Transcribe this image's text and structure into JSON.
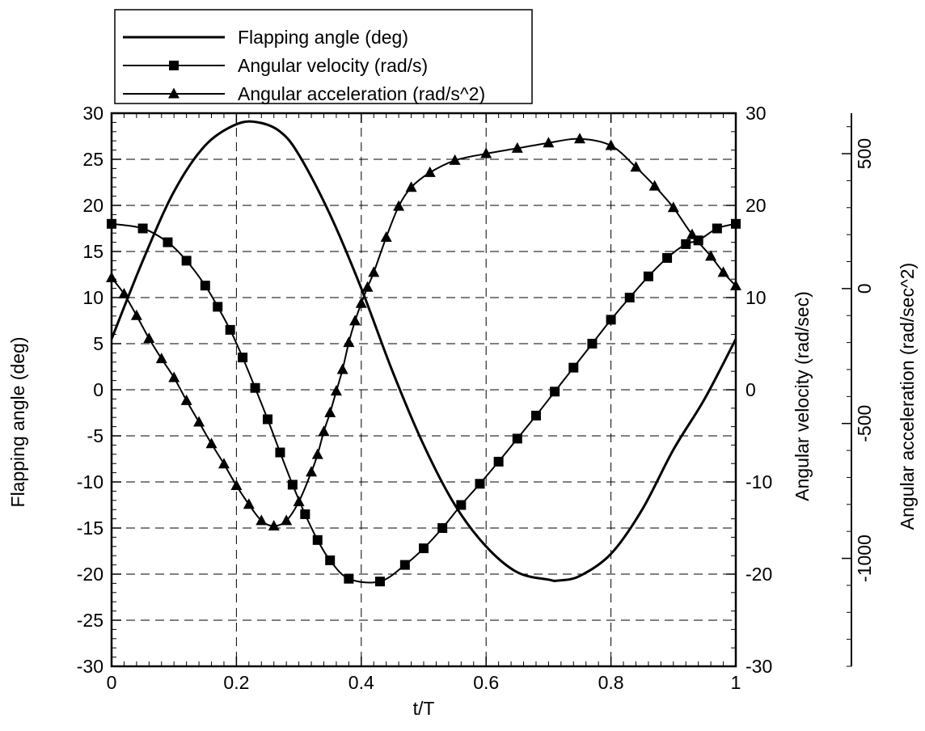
{
  "chart_data": {
    "type": "line",
    "xlabel": "t/T",
    "xlim": [
      0,
      1
    ],
    "x_ticks": [
      "0",
      "0.2",
      "0.4",
      "0.6",
      "0.8",
      "1"
    ],
    "grid": true,
    "legend_position": "top-left",
    "axes": {
      "left": {
        "label": "Flapping angle (deg)",
        "ylim": [
          -30,
          30
        ],
        "ticks": [
          "30",
          "25",
          "20",
          "15",
          "10",
          "5",
          "0",
          "-5",
          "-10",
          "-15",
          "-20",
          "-25",
          "-30"
        ]
      },
      "right": {
        "label": "Angular velocity (rad/sec)",
        "ylim": [
          -30,
          30
        ],
        "ticks": [
          "30",
          "20",
          "10",
          "0",
          "-10",
          "-20",
          "-30"
        ]
      },
      "far_right": {
        "label": "Angular acceleration (rad/sec^2)",
        "ylim": [
          -1400,
          650
        ],
        "ticks": [
          "500",
          "0",
          "-500",
          "-1000"
        ]
      }
    },
    "series": [
      {
        "name": "Flapping angle (deg)",
        "axis": "left",
        "marker": "none",
        "x": [
          0,
          0.05,
          0.1,
          0.15,
          0.2,
          0.235,
          0.27,
          0.3,
          0.35,
          0.4,
          0.45,
          0.5,
          0.55,
          0.6,
          0.65,
          0.7,
          0.715,
          0.75,
          0.8,
          0.85,
          0.9,
          0.95,
          1.0
        ],
        "values": [
          5.5,
          14,
          21.5,
          26.5,
          28.8,
          29,
          28,
          25.5,
          19,
          11,
          2,
          -6,
          -12.5,
          -17,
          -19.8,
          -20.6,
          -20.7,
          -20.2,
          -17.8,
          -13,
          -6.5,
          -1,
          5.5
        ]
      },
      {
        "name": "Angular velocity (rad/s)",
        "axis": "right",
        "marker": "square",
        "x": [
          0,
          0.05,
          0.09,
          0.12,
          0.15,
          0.17,
          0.19,
          0.21,
          0.23,
          0.25,
          0.27,
          0.29,
          0.31,
          0.33,
          0.35,
          0.38,
          0.43,
          0.47,
          0.5,
          0.53,
          0.56,
          0.59,
          0.62,
          0.65,
          0.68,
          0.71,
          0.74,
          0.77,
          0.8,
          0.83,
          0.86,
          0.89,
          0.92,
          0.94,
          0.97,
          1.0
        ],
        "values": [
          18,
          17.5,
          16,
          14,
          11.3,
          9,
          6.5,
          3.5,
          0.2,
          -3.2,
          -6.8,
          -10.3,
          -13.5,
          -16.3,
          -18.5,
          -20.5,
          -20.8,
          -19,
          -17.2,
          -15,
          -12.5,
          -10.2,
          -7.8,
          -5.3,
          -2.8,
          -0.2,
          2.4,
          5,
          7.6,
          10,
          12.3,
          14.3,
          15.8,
          16.2,
          17.5,
          18
        ]
      },
      {
        "name": "Angular acceleration (rad/s^2)",
        "axis": "far_right",
        "marker": "triangle",
        "x": [
          0,
          0.02,
          0.04,
          0.06,
          0.08,
          0.1,
          0.12,
          0.14,
          0.16,
          0.18,
          0.2,
          0.22,
          0.24,
          0.26,
          0.28,
          0.3,
          0.32,
          0.33,
          0.34,
          0.35,
          0.36,
          0.37,
          0.38,
          0.39,
          0.4,
          0.41,
          0.42,
          0.44,
          0.46,
          0.48,
          0.51,
          0.55,
          0.6,
          0.65,
          0.7,
          0.75,
          0.8,
          0.84,
          0.87,
          0.9,
          0.93,
          0.96,
          0.98,
          1.0
        ],
        "values": [
          40,
          -20,
          -100,
          -185,
          -260,
          -330,
          -415,
          -495,
          -575,
          -650,
          -730,
          -800,
          -860,
          -880,
          -860,
          -790,
          -680,
          -615,
          -530,
          -460,
          -380,
          -300,
          -200,
          -120,
          -55,
          5,
          60,
          190,
          305,
          375,
          430,
          475,
          500,
          520,
          540,
          555,
          530,
          450,
          380,
          300,
          200,
          120,
          60,
          10
        ]
      }
    ],
    "legend": [
      {
        "label": "Flapping angle (deg)",
        "marker": "none"
      },
      {
        "label": "Angular velocity (rad/s)",
        "marker": "square"
      },
      {
        "label": "Angular acceleration (rad/s^2)",
        "marker": "triangle"
      }
    ]
  }
}
